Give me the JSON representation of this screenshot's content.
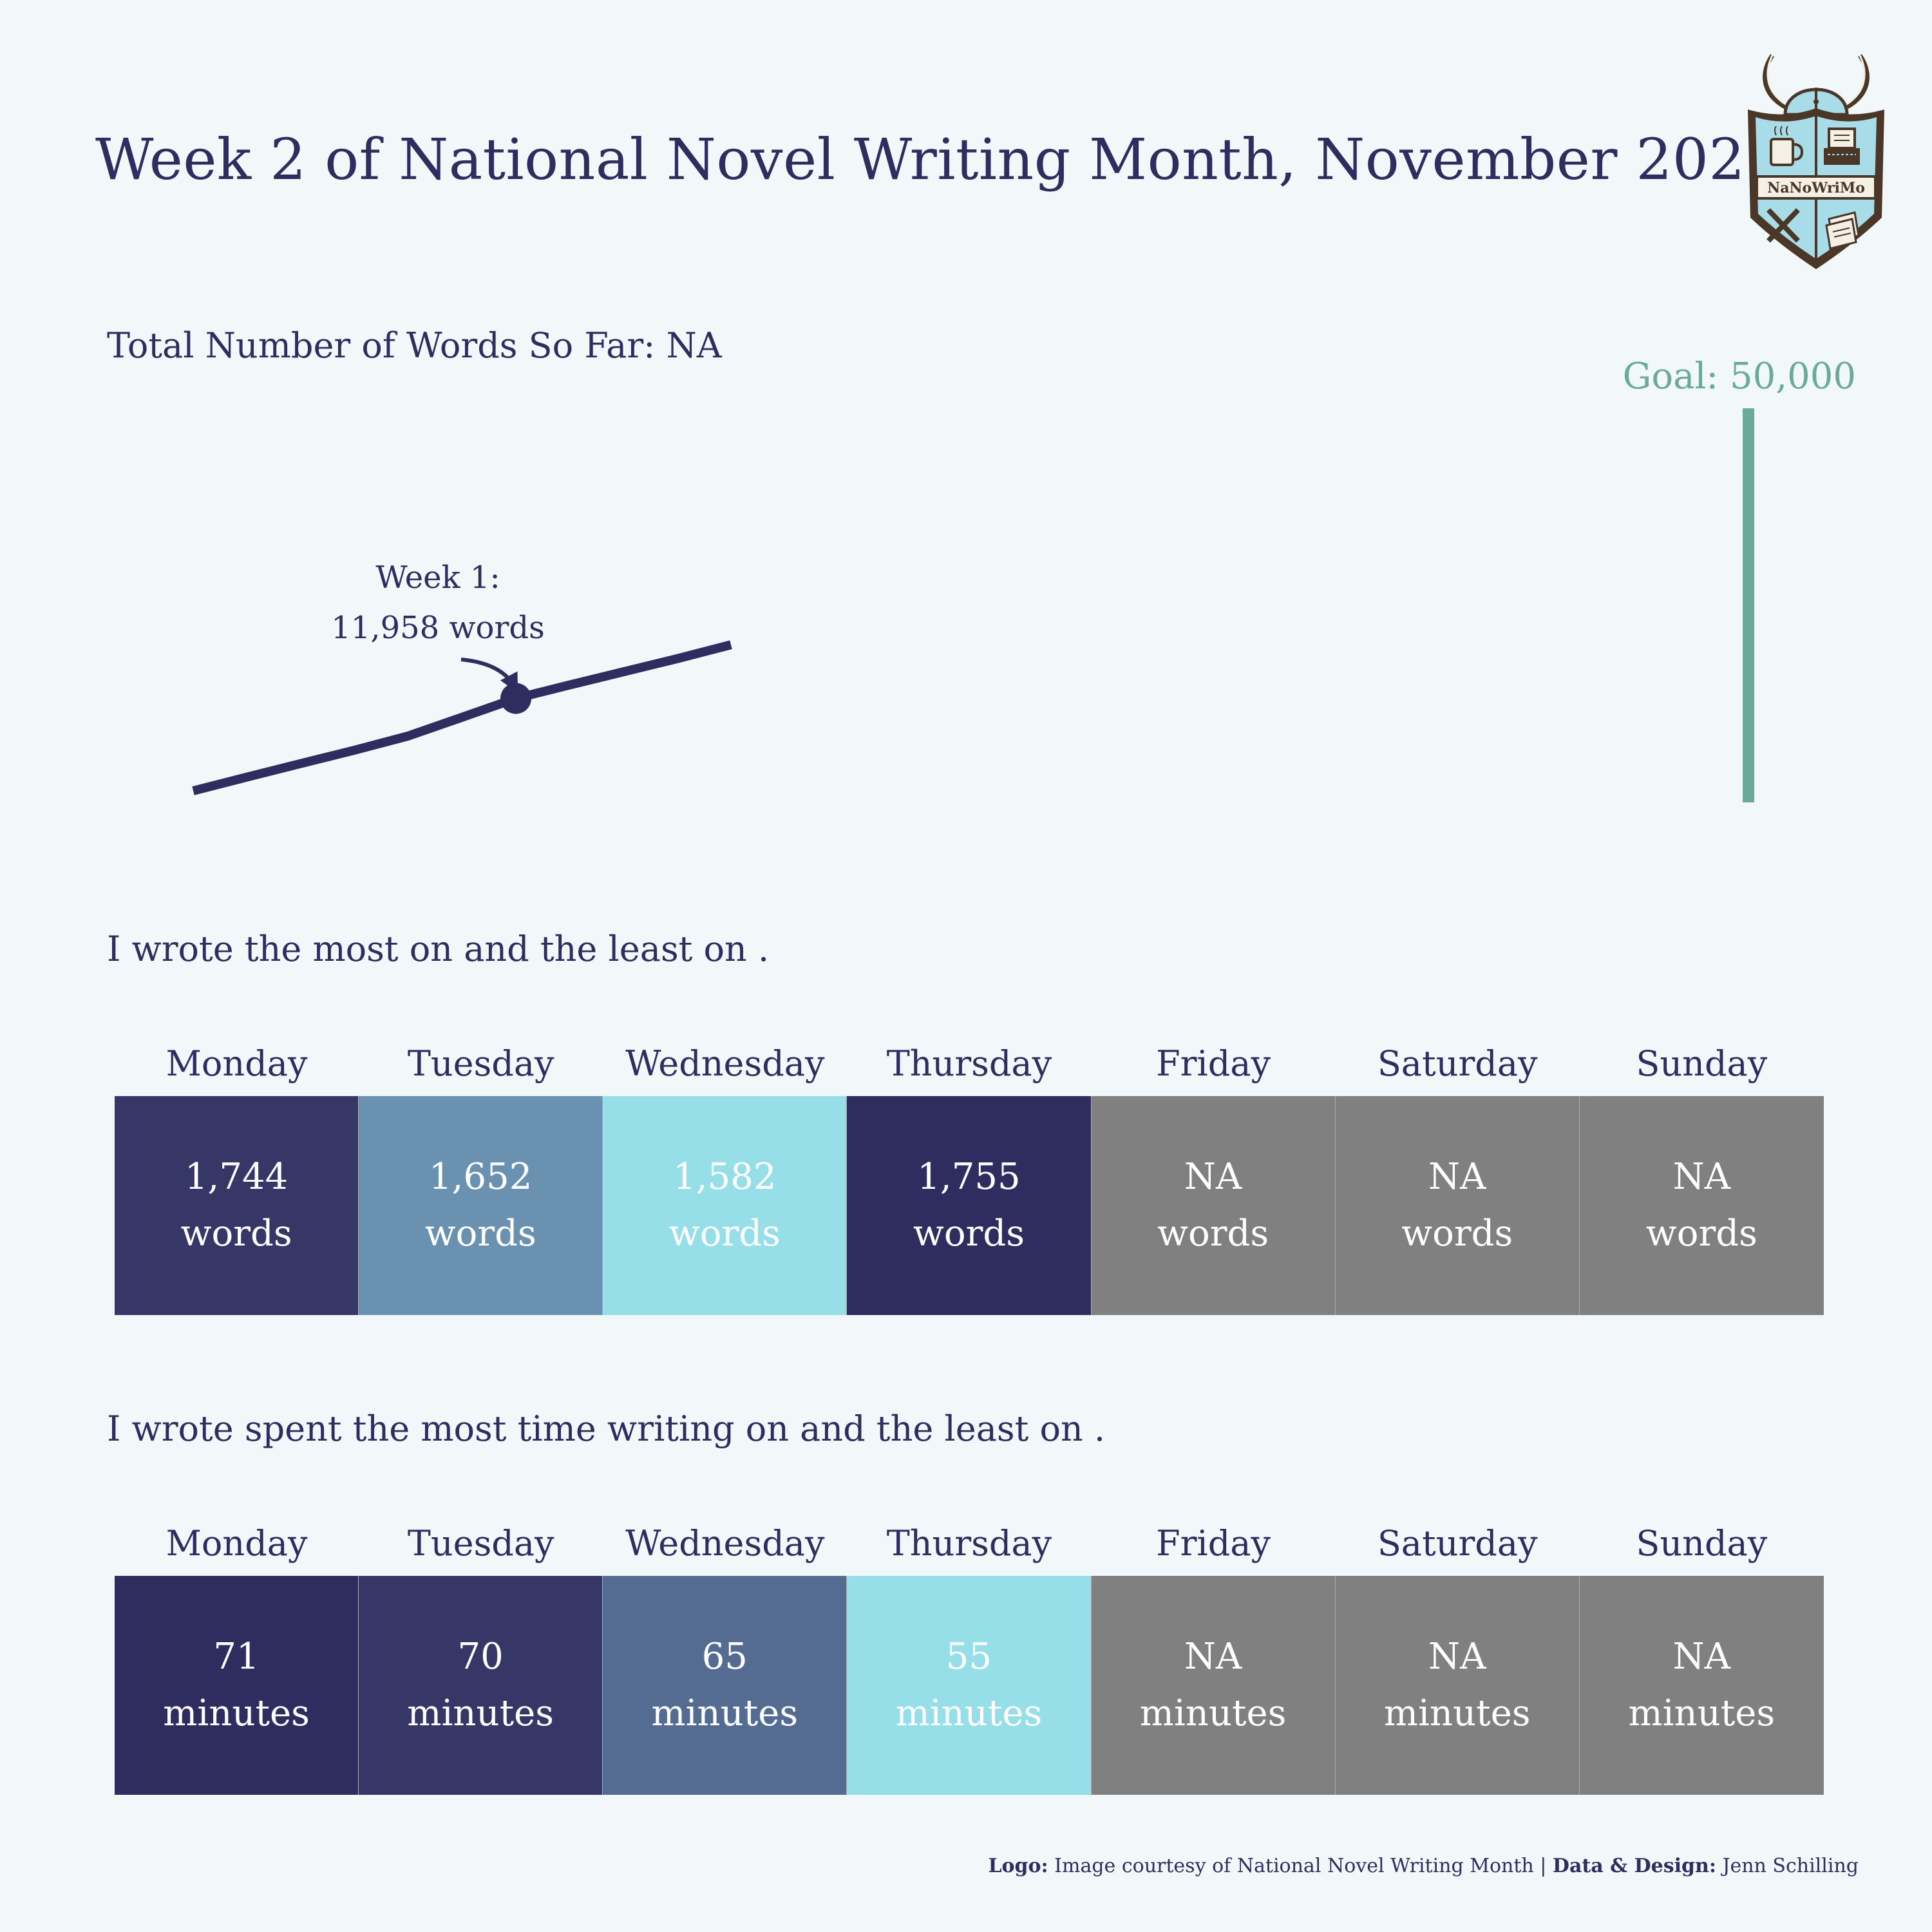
{
  "title": "Week 2 of National Novel Writing Month, November 2021",
  "logo": {
    "text": "NaNoWriMo",
    "icons": [
      "viking-helmet-icon",
      "coffee-mug-icon",
      "typewriter-icon",
      "crossed-pens-icon",
      "paper-stack-icon"
    ]
  },
  "progress": {
    "subtitle": "Total Number of Words So Far: NA",
    "goal_label": "Goal: 50,000",
    "annotation_line1": "Week 1:",
    "annotation_line2": "11,958 words"
  },
  "words": {
    "subtitle": "I wrote the most on and the least on ."
  },
  "time": {
    "subtitle": "I wrote spent the most time writing on and the least on ."
  },
  "credit": {
    "logo_label": "Logo:",
    "logo_text": "Image courtesy of National Novel Writing Month",
    "sep": "|",
    "design_label": "Data & Design:",
    "design_text": "Jenn Schilling"
  },
  "colors": {
    "background": "#f2f7f9",
    "text": "#2f2c5f",
    "goal": "#6aab98",
    "na": "#808080"
  },
  "chart_data": [
    {
      "type": "line",
      "title": "Total Number of Words So Far: NA",
      "x": [
        1,
        2,
        3,
        4,
        5,
        6,
        7,
        8,
        9,
        10,
        11
      ],
      "series": [
        {
          "values": [
            0,
            1780,
            3530,
            5260,
            7100,
            9520,
            11958,
            13700,
            15400,
            17100,
            18900
          ]
        }
      ],
      "ylim": [
        0,
        50000
      ],
      "goal": 50000,
      "annotation": {
        "x": 7,
        "y": 11958,
        "text": "Week 1: 11,958 words"
      }
    },
    {
      "type": "table",
      "categories": [
        "Monday",
        "Tuesday",
        "Wednesday",
        "Thursday",
        "Friday",
        "Saturday",
        "Sunday"
      ],
      "values": [
        "1,744",
        "1,652",
        "1,582",
        "1,755",
        "NA",
        "NA",
        "NA"
      ],
      "unit": "words",
      "fills": [
        "#363766",
        "#6a92b0",
        "#96dfe8",
        "#2f2c5f",
        "#808080",
        "#808080",
        "#808080"
      ]
    },
    {
      "type": "table",
      "categories": [
        "Monday",
        "Tuesday",
        "Wednesday",
        "Thursday",
        "Friday",
        "Saturday",
        "Sunday"
      ],
      "values": [
        "71",
        "70",
        "65",
        "55",
        "NA",
        "NA",
        "NA"
      ],
      "unit": "minutes",
      "fills": [
        "#2f2c5f",
        "#363766",
        "#546c92",
        "#96dfe8",
        "#808080",
        "#808080",
        "#808080"
      ]
    }
  ]
}
